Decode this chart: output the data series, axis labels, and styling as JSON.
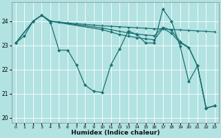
{
  "xlabel": "Humidex (Indice chaleur)",
  "xlim": [
    -0.5,
    23.5
  ],
  "ylim": [
    19.8,
    24.8
  ],
  "yticks": [
    20,
    21,
    22,
    23,
    24
  ],
  "xticks": [
    0,
    1,
    2,
    3,
    4,
    5,
    6,
    7,
    8,
    9,
    10,
    11,
    12,
    13,
    14,
    15,
    16,
    17,
    18,
    19,
    20,
    21,
    22,
    23
  ],
  "bg_color": "#b2e2e2",
  "grid_color": "#ffffff",
  "line_color": "#1a7070",
  "s1x": [
    0,
    1,
    2,
    3,
    4,
    5,
    6,
    7,
    8,
    9,
    10,
    11,
    12,
    13,
    14,
    15,
    16,
    17,
    18,
    19,
    20,
    21,
    22,
    23
  ],
  "s1y": [
    23.1,
    23.4,
    24.0,
    24.25,
    23.95,
    22.8,
    22.8,
    22.2,
    21.35,
    21.1,
    21.05,
    22.2,
    22.85,
    23.6,
    23.45,
    23.1,
    23.1,
    24.5,
    24.0,
    22.95,
    21.5,
    22.15,
    20.4,
    20.5
  ],
  "s2x": [
    0,
    2,
    3,
    4,
    5,
    6,
    7,
    8,
    9,
    10,
    11,
    12,
    13,
    14,
    15,
    16,
    17,
    18,
    19,
    20,
    21,
    22,
    23
  ],
  "s2y": [
    23.1,
    24.0,
    24.25,
    24.0,
    23.97,
    23.93,
    23.9,
    23.87,
    23.84,
    23.81,
    23.79,
    23.77,
    23.75,
    23.73,
    23.71,
    23.69,
    23.68,
    23.66,
    23.64,
    23.62,
    23.6,
    23.58,
    23.56
  ],
  "s3x": [
    0,
    2,
    3,
    4,
    10,
    11,
    12,
    13,
    14,
    15,
    16,
    17,
    18,
    19,
    20,
    21,
    22,
    23
  ],
  "s3y": [
    23.1,
    24.0,
    24.25,
    24.0,
    23.65,
    23.55,
    23.45,
    23.38,
    23.32,
    23.27,
    23.23,
    23.7,
    23.5,
    23.1,
    22.9,
    22.15,
    20.4,
    20.5
  ],
  "s4x": [
    0,
    2,
    3,
    4,
    10,
    11,
    12,
    13,
    14,
    15,
    16,
    17,
    18,
    19,
    20,
    21,
    22,
    23
  ],
  "s4y": [
    23.1,
    24.0,
    24.25,
    24.0,
    23.72,
    23.65,
    23.58,
    23.52,
    23.47,
    23.43,
    23.4,
    23.75,
    23.62,
    23.15,
    22.92,
    22.15,
    20.4,
    20.5
  ]
}
